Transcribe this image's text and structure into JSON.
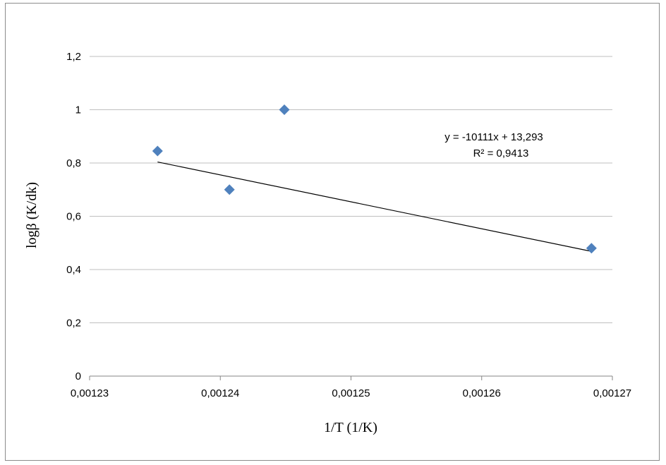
{
  "chart_data": {
    "type": "scatter",
    "title": "",
    "xlabel": "1/T (1/K)",
    "ylabel": "logβ (K/dk)",
    "xlim": [
      0.00123,
      0.00127
    ],
    "ylim": [
      0,
      1.2
    ],
    "x_ticks": [
      0.00123,
      0.00124,
      0.00125,
      0.00126,
      0.00127
    ],
    "x_tick_labels": [
      "0,00123",
      "0,00124",
      "0,00125",
      "0,00126",
      "0,00127"
    ],
    "y_ticks": [
      0,
      0.2,
      0.4,
      0.6,
      0.8,
      1,
      1.2
    ],
    "y_tick_labels": [
      "0",
      "0,2",
      "0,4",
      "0,6",
      "0,8",
      "1",
      "1,2"
    ],
    "grid": "horizontal",
    "marker_color": "#4f81bd",
    "trend_color": "#000000",
    "series": [
      {
        "marker": "diamond",
        "points": [
          {
            "x": 0.0012352,
            "y": 0.845
          },
          {
            "x": 0.0012407,
            "y": 0.7
          },
          {
            "x": 0.0012449,
            "y": 1.0
          },
          {
            "x": 0.0012684,
            "y": 0.48
          }
        ]
      }
    ],
    "trendline": {
      "slope": -10111,
      "intercept": 13.293,
      "x_from": 0.0012352,
      "x_to": 0.0012684,
      "equation": "y = -10111x + 13,293",
      "r2": "R² = 0,9413"
    }
  }
}
